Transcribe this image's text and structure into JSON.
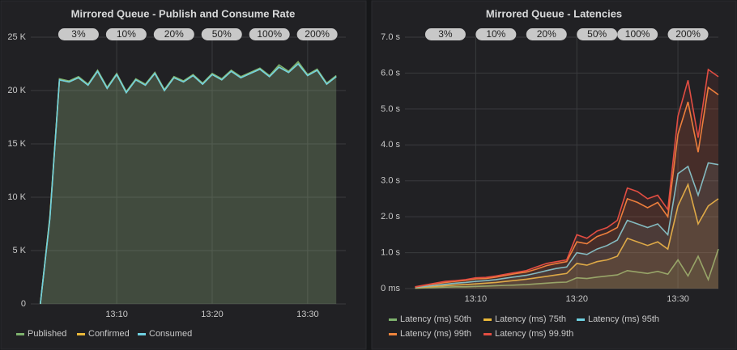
{
  "chart_data": [
    {
      "type": "line",
      "title": "Mirrored Queue - Publish and Consume Rate",
      "x": [
        "13:02",
        "13:03",
        "13:04",
        "13:05",
        "13:06",
        "13:07",
        "13:08",
        "13:09",
        "13:10",
        "13:11",
        "13:12",
        "13:13",
        "13:14",
        "13:15",
        "13:16",
        "13:17",
        "13:18",
        "13:19",
        "13:20",
        "13:21",
        "13:22",
        "13:23",
        "13:24",
        "13:25",
        "13:26",
        "13:27",
        "13:28",
        "13:29",
        "13:30",
        "13:31",
        "13:32",
        "13:33"
      ],
      "series": [
        {
          "name": "Published",
          "color": "#7eb26d",
          "values": [
            0,
            8200,
            21100,
            20900,
            21300,
            20600,
            21900,
            20300,
            21600,
            19900,
            21100,
            20600,
            21700,
            20100,
            21300,
            20900,
            21500,
            20700,
            21600,
            21100,
            21900,
            21300,
            21700,
            22100,
            21400,
            22400,
            21800,
            22700,
            21500,
            22000,
            20700,
            21400
          ]
        },
        {
          "name": "Confirmed",
          "color": "#eab839",
          "values": [
            0,
            8100,
            21000,
            20800,
            21200,
            20500,
            21800,
            20200,
            21500,
            19800,
            21000,
            20500,
            21600,
            20000,
            21200,
            20800,
            21400,
            20600,
            21500,
            21000,
            21800,
            21200,
            21600,
            22000,
            21300,
            22200,
            21700,
            22500,
            21400,
            21900,
            20600,
            21300
          ]
        },
        {
          "name": "Consumed",
          "color": "#6ed0e0",
          "values": [
            0,
            8000,
            21000,
            20800,
            21200,
            20500,
            21800,
            20200,
            21500,
            19800,
            21000,
            20500,
            21600,
            20000,
            21200,
            20800,
            21400,
            20600,
            21500,
            21000,
            21800,
            21200,
            21600,
            22000,
            21300,
            22200,
            21700,
            22500,
            21400,
            21900,
            20600,
            21300
          ]
        }
      ],
      "xlim": [
        "13:01",
        "13:34"
      ],
      "xticks": [
        "13:10",
        "13:20",
        "13:30"
      ],
      "ylim": [
        0,
        25000
      ],
      "yticks": [
        0,
        {
          "value": 5000,
          "label": "5 K"
        },
        {
          "value": 10000,
          "label": "10 K"
        },
        {
          "value": 15000,
          "label": "15 K"
        },
        {
          "value": 20000,
          "label": "20 K"
        },
        {
          "value": 25000,
          "label": "25 K"
        }
      ],
      "grid": true,
      "annotations": [
        {
          "text": "3%",
          "x": "13:06"
        },
        {
          "text": "10%",
          "x": "13:11"
        },
        {
          "text": "20%",
          "x": "13:16"
        },
        {
          "text": "50%",
          "x": "13:21"
        },
        {
          "text": "100%",
          "x": "13:26"
        },
        {
          "text": "200%",
          "x": "13:31"
        }
      ]
    },
    {
      "type": "line",
      "title": "Mirrored Queue - Latencies",
      "x": [
        "13:04",
        "13:05",
        "13:06",
        "13:07",
        "13:08",
        "13:09",
        "13:10",
        "13:11",
        "13:12",
        "13:13",
        "13:14",
        "13:15",
        "13:16",
        "13:17",
        "13:18",
        "13:19",
        "13:20",
        "13:21",
        "13:22",
        "13:23",
        "13:24",
        "13:25",
        "13:26",
        "13:27",
        "13:28",
        "13:29",
        "13:30",
        "13:31",
        "13:32",
        "13:33",
        "13:34"
      ],
      "series": [
        {
          "name": "Latency (ms) 50th",
          "color": "#7eb26d",
          "values": [
            10,
            20,
            30,
            40,
            50,
            50,
            60,
            70,
            80,
            90,
            100,
            110,
            130,
            150,
            170,
            180,
            300,
            280,
            320,
            350,
            380,
            500,
            460,
            420,
            480,
            400,
            800,
            350,
            900,
            250,
            1100
          ]
        },
        {
          "name": "Latency (ms) 75th",
          "color": "#eab839",
          "values": [
            20,
            40,
            60,
            80,
            100,
            110,
            130,
            150,
            170,
            200,
            230,
            260,
            300,
            340,
            380,
            420,
            700,
            650,
            750,
            800,
            900,
            1400,
            1300,
            1200,
            1300,
            1100,
            2300,
            2900,
            1800,
            2300,
            2500
          ]
        },
        {
          "name": "Latency (ms) 95th",
          "color": "#6ed0e0",
          "values": [
            30,
            60,
            90,
            120,
            150,
            170,
            200,
            220,
            250,
            290,
            330,
            370,
            430,
            500,
            560,
            600,
            1000,
            950,
            1100,
            1200,
            1350,
            1900,
            1800,
            1700,
            1800,
            1500,
            3200,
            3400,
            2600,
            3500,
            3450
          ]
        },
        {
          "name": "Latency (ms) 99th",
          "color": "#ef843c",
          "values": [
            40,
            90,
            130,
            170,
            200,
            230,
            270,
            280,
            320,
            370,
            420,
            460,
            540,
            640,
            700,
            750,
            1300,
            1250,
            1450,
            1550,
            1700,
            2500,
            2400,
            2250,
            2400,
            2000,
            4300,
            5200,
            3800,
            5600,
            5400
          ]
        },
        {
          "name": "Latency (ms) 99.9th",
          "color": "#e24d42",
          "values": [
            50,
            100,
            150,
            200,
            220,
            250,
            300,
            310,
            350,
            400,
            450,
            500,
            600,
            700,
            750,
            800,
            1500,
            1400,
            1600,
            1700,
            1900,
            2800,
            2700,
            2500,
            2600,
            2200,
            4800,
            5800,
            4200,
            6100,
            5900
          ]
        }
      ],
      "xlim": [
        "13:03",
        "13:34"
      ],
      "xticks": [
        "13:10",
        "13:20",
        "13:30"
      ],
      "ylim": [
        0,
        7000
      ],
      "yticks": [
        {
          "value": 0,
          "label": "0 ms"
        },
        {
          "value": 1000,
          "label": "1.0 s"
        },
        {
          "value": 2000,
          "label": "2.0 s"
        },
        {
          "value": 3000,
          "label": "3.0 s"
        },
        {
          "value": 4000,
          "label": "4.0 s"
        },
        {
          "value": 5000,
          "label": "5.0 s"
        },
        {
          "value": 6000,
          "label": "6.0 s"
        },
        {
          "value": 7000,
          "label": "7.0 s"
        }
      ],
      "grid": true,
      "annotations": [
        {
          "text": "3%",
          "x": "13:07"
        },
        {
          "text": "10%",
          "x": "13:12"
        },
        {
          "text": "20%",
          "x": "13:17"
        },
        {
          "text": "50%",
          "x": "13:22"
        },
        {
          "text": "100%",
          "x": "13:26"
        },
        {
          "text": "200%",
          "x": "13:31"
        }
      ]
    }
  ]
}
